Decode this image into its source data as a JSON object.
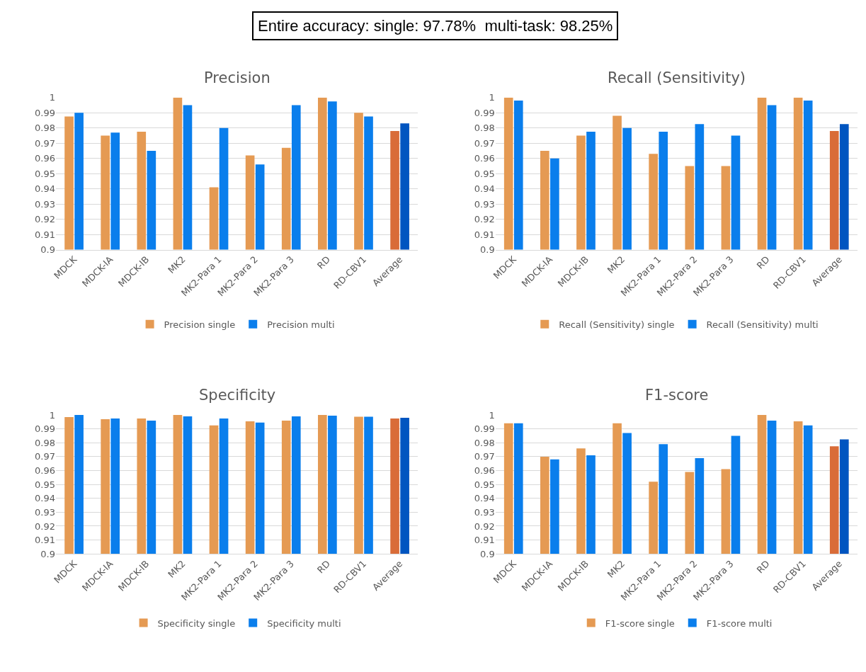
{
  "chart_data": [
    {
      "type": "bar",
      "title": "Precision",
      "annotations": [
        "Entire accuracy: single: 97.78%  multi-task: 98.25%"
      ],
      "categories": [
        "MDCK",
        "MDCK-IA",
        "MDCK-IB",
        "MK2",
        "MK2-Para 1",
        "MK2-Para 2",
        "MK2-Para 3",
        "RD",
        "RD-CBV1",
        "Average"
      ],
      "series": [
        {
          "name": "Precision single",
          "colors": [
            "#e59a53",
            "#e59a53",
            "#e59a53",
            "#e59a53",
            "#e59a53",
            "#e59a53",
            "#e59a53",
            "#e59a53",
            "#e59a53",
            "#d96c38"
          ],
          "values": [
            0.9875,
            0.975,
            0.9775,
            1,
            0.941,
            0.962,
            0.967,
            1,
            0.99,
            0.978
          ]
        },
        {
          "name": "Precision multi",
          "colors": [
            "#0a7eec",
            "#0a7eec",
            "#0a7eec",
            "#0a7eec",
            "#0a7eec",
            "#0a7eec",
            "#0a7eec",
            "#0a7eec",
            "#0a7eec",
            "#0055c0"
          ],
          "values": [
            0.99,
            0.977,
            0.965,
            0.995,
            0.98,
            0.956,
            0.995,
            0.9975,
            0.9875,
            0.983
          ]
        }
      ],
      "ylim": [
        0.9,
        1
      ],
      "yticks": [
        0.9,
        0.91,
        0.92,
        0.93,
        0.94,
        0.95,
        0.96,
        0.97,
        0.98,
        0.99,
        1
      ],
      "grid": "y",
      "legend": "bottom"
    },
    {
      "type": "bar",
      "title": "Recall (Sensitivity)",
      "categories": [
        "MDCK",
        "MDCK-IA",
        "MDCK-IB",
        "MK2",
        "MK2-Para 1",
        "MK2-Para 2",
        "MK2-Para 3",
        "RD",
        "RD-CBV1",
        "Average"
      ],
      "series": [
        {
          "name": "Recall (Sensitivity) single",
          "colors": [
            "#e59a53",
            "#e59a53",
            "#e59a53",
            "#e59a53",
            "#e59a53",
            "#e59a53",
            "#e59a53",
            "#e59a53",
            "#e59a53",
            "#d96c38"
          ],
          "values": [
            1,
            0.965,
            0.975,
            0.988,
            0.963,
            0.955,
            0.955,
            1,
            1,
            0.978
          ]
        },
        {
          "name": "Recall (Sensitivity) multi",
          "colors": [
            "#0a7eec",
            "#0a7eec",
            "#0a7eec",
            "#0a7eec",
            "#0a7eec",
            "#0a7eec",
            "#0a7eec",
            "#0a7eec",
            "#0a7eec",
            "#0055c0"
          ],
          "values": [
            0.998,
            0.96,
            0.9775,
            0.98,
            0.9775,
            0.9825,
            0.975,
            0.995,
            0.998,
            0.9825
          ]
        }
      ],
      "ylim": [
        0.9,
        1
      ],
      "yticks": [
        0.9,
        0.91,
        0.92,
        0.93,
        0.94,
        0.95,
        0.96,
        0.97,
        0.98,
        0.99,
        1
      ],
      "grid": "y",
      "legend": "bottom"
    },
    {
      "type": "bar",
      "title": "Specificity",
      "categories": [
        "MDCK",
        "MDCK-IA",
        "MDCK-IB",
        "MK2",
        "MK2-Para 1",
        "MK2-Para 2",
        "MK2-Para 3",
        "RD",
        "RD-CBV1",
        "Average"
      ],
      "series": [
        {
          "name": "Specificity single",
          "colors": [
            "#e59a53",
            "#e59a53",
            "#e59a53",
            "#e59a53",
            "#e59a53",
            "#e59a53",
            "#e59a53",
            "#e59a53",
            "#e59a53",
            "#d96c38"
          ],
          "values": [
            0.9985,
            0.997,
            0.9975,
            1,
            0.9925,
            0.9955,
            0.996,
            1,
            0.9988,
            0.9975
          ]
        },
        {
          "name": "Specificity multi",
          "colors": [
            "#0a7eec",
            "#0a7eec",
            "#0a7eec",
            "#0a7eec",
            "#0a7eec",
            "#0a7eec",
            "#0a7eec",
            "#0a7eec",
            "#0a7eec",
            "#0055c0"
          ],
          "values": [
            1,
            0.9975,
            0.996,
            0.999,
            0.9975,
            0.9945,
            0.999,
            0.9995,
            0.9988,
            0.998
          ]
        }
      ],
      "ylim": [
        0.9,
        1
      ],
      "yticks": [
        0.9,
        0.91,
        0.92,
        0.93,
        0.94,
        0.95,
        0.96,
        0.97,
        0.98,
        0.99,
        1
      ],
      "grid": "y",
      "legend": "bottom"
    },
    {
      "type": "bar",
      "title": "F1-score",
      "categories": [
        "MDCK",
        "MDCK-IA",
        "MDCK-IB",
        "MK2",
        "MK2-Para 1",
        "MK2-Para 2",
        "MK2-Para 3",
        "RD",
        "RD-CBV1",
        "Average"
      ],
      "series": [
        {
          "name": "F1-score single",
          "colors": [
            "#e59a53",
            "#e59a53",
            "#e59a53",
            "#e59a53",
            "#e59a53",
            "#e59a53",
            "#e59a53",
            "#e59a53",
            "#e59a53",
            "#d96c38"
          ],
          "values": [
            0.994,
            0.97,
            0.976,
            0.994,
            0.952,
            0.959,
            0.961,
            1,
            0.9955,
            0.9775
          ]
        },
        {
          "name": "F1-score multi",
          "colors": [
            "#0a7eec",
            "#0a7eec",
            "#0a7eec",
            "#0a7eec",
            "#0a7eec",
            "#0a7eec",
            "#0a7eec",
            "#0a7eec",
            "#0a7eec",
            "#0055c0"
          ],
          "values": [
            0.994,
            0.968,
            0.971,
            0.987,
            0.979,
            0.969,
            0.985,
            0.996,
            0.9925,
            0.9825
          ]
        }
      ],
      "ylim": [
        0.9,
        1
      ],
      "yticks": [
        0.9,
        0.91,
        0.92,
        0.93,
        0.94,
        0.95,
        0.96,
        0.97,
        0.98,
        0.99,
        1
      ],
      "grid": "y",
      "legend": "bottom"
    }
  ]
}
